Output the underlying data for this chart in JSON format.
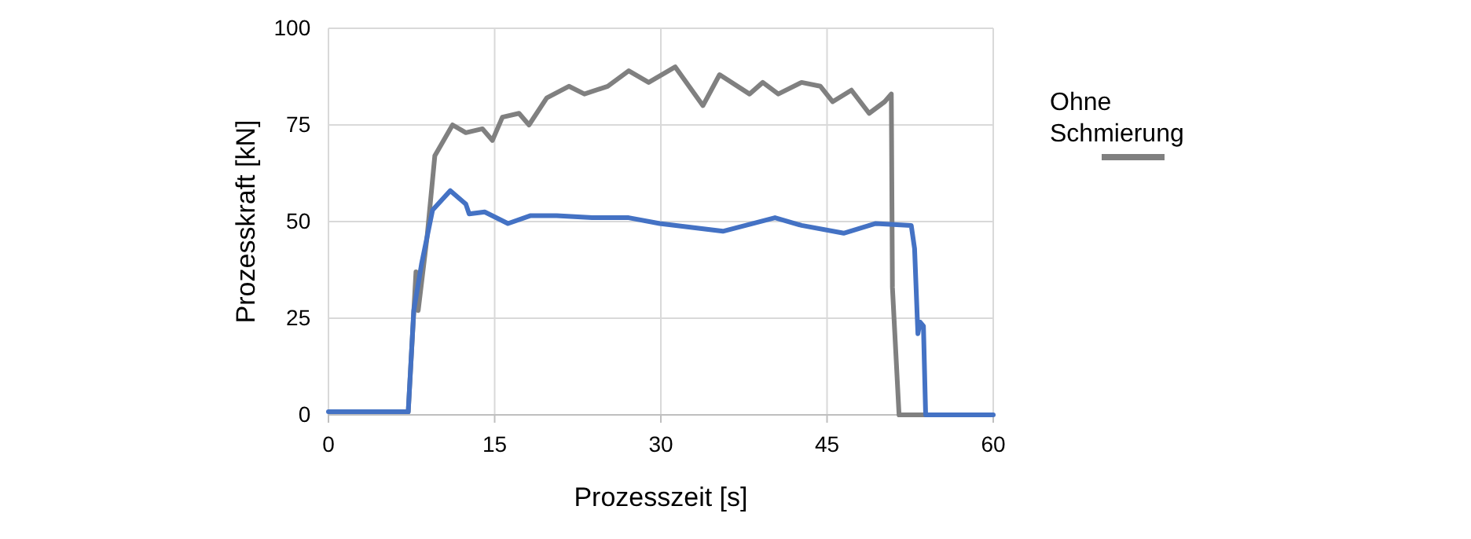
{
  "chart_data": {
    "type": "line",
    "xlabel": "Prozesszeit [s]",
    "ylabel": "Prozesskraft [kN]",
    "xlim": [
      0,
      60
    ],
    "xticks": [
      0,
      15,
      30,
      45,
      60
    ],
    "ylim": [
      0,
      100
    ],
    "yticks": [
      0,
      25,
      50,
      75,
      100
    ],
    "grid": true,
    "legend": "right",
    "marker": "none",
    "line_style": "solid",
    "series": [
      {
        "name": "Ohne Schmierung",
        "color": "#808080",
        "x": [
          7.2,
          7.9,
          8.1,
          8.9,
          9.6,
          11.2,
          12.4,
          13.9,
          14.8,
          15.7,
          17.2,
          18.1,
          19.7,
          21.7,
          23.1,
          25.2,
          27.1,
          28.9,
          31.3,
          33.8,
          35.3,
          38,
          39.2,
          40.6,
          42.7,
          44.4,
          45.5,
          47.2,
          48.8,
          50.2,
          50.8,
          50.9,
          51.5,
          54
        ],
        "values": [
          0.8,
          37,
          27,
          46,
          67,
          75,
          73,
          74,
          71,
          77,
          78,
          75,
          82,
          85,
          83,
          85,
          89,
          86,
          90,
          80,
          88,
          83,
          86,
          83,
          86,
          85,
          81,
          84,
          78,
          81,
          83,
          33,
          0,
          0
        ]
      },
      {
        "color": "#4472c4",
        "x": [
          0,
          7.2,
          7.7,
          8.4,
          9.4,
          11,
          12.4,
          12.7,
          14.1,
          16.2,
          18.2,
          20.6,
          23.8,
          27.1,
          29.9,
          35.6,
          40.3,
          42.7,
          46.5,
          49.4,
          52.6,
          52.9,
          53.2,
          53.4,
          53.7,
          53.9,
          60
        ],
        "values": [
          0.8,
          0.8,
          27,
          39,
          53,
          58,
          54.5,
          52,
          52.5,
          49.5,
          51.5,
          51.5,
          51,
          51,
          49.5,
          47.5,
          51,
          49,
          47,
          49.5,
          49,
          43,
          21,
          24,
          23,
          0,
          0
        ]
      }
    ]
  }
}
